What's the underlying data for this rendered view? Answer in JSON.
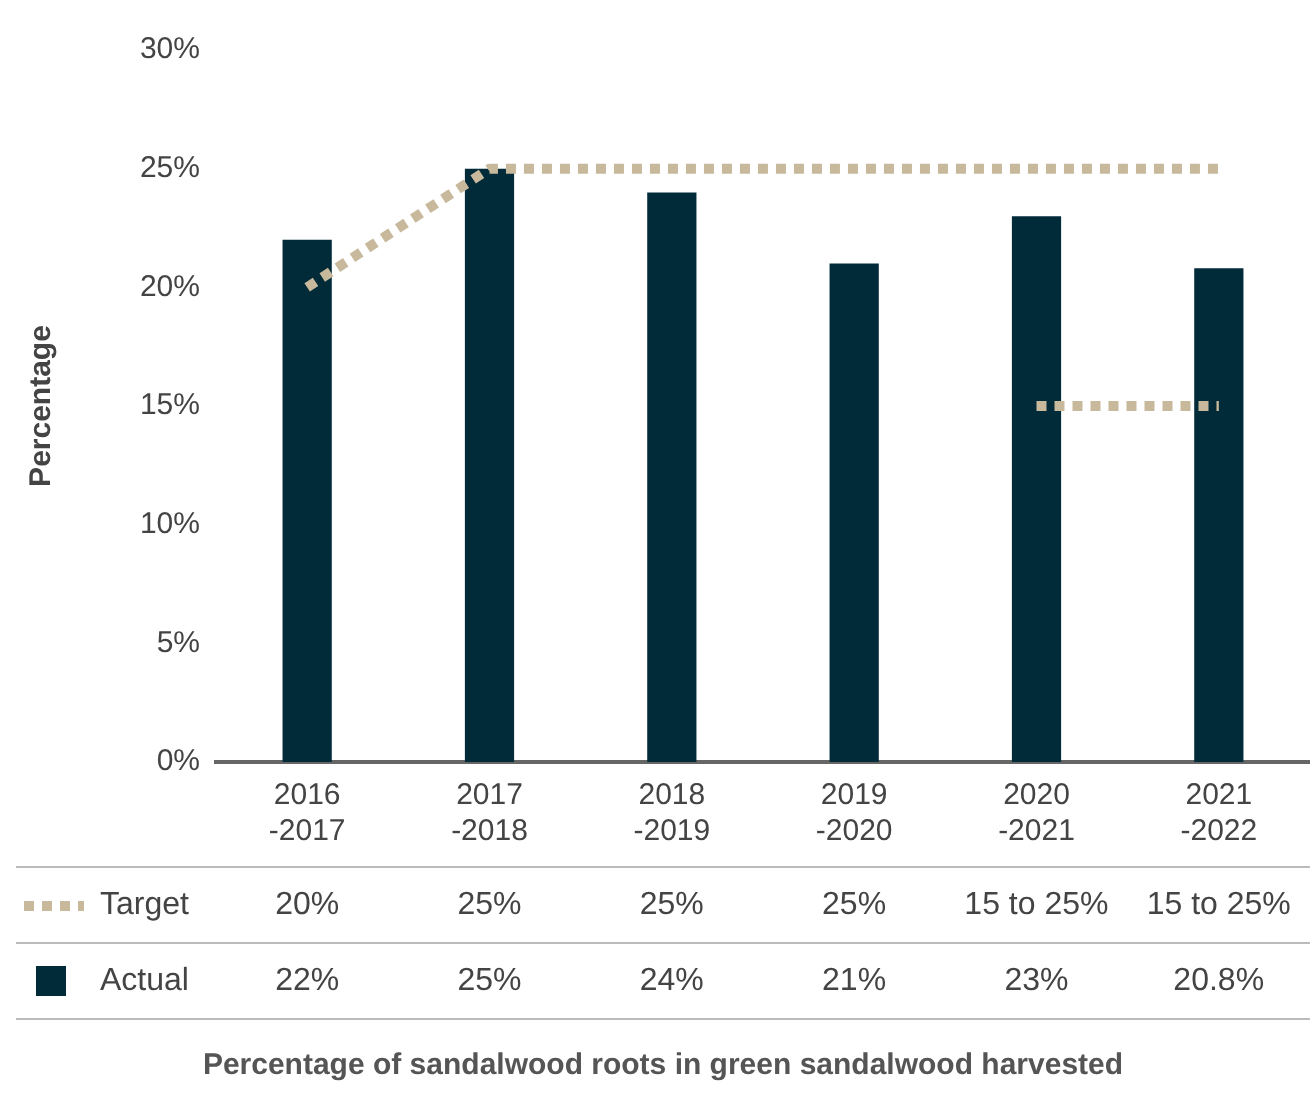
{
  "chart_data": {
    "type": "bar",
    "title": "Percentage of sandalwood roots in green sandalwood harvested",
    "ylabel": "Percentage",
    "categories": [
      "2016-2017",
      "2017-2018",
      "2018-2019",
      "2019-2020",
      "2020-2021",
      "2021-2022"
    ],
    "series": [
      {
        "name": "Target",
        "type": "line",
        "color": "#c8b99c",
        "values": [
          20,
          25,
          25,
          25,
          25,
          25
        ],
        "value_labels": [
          "20%",
          "25%",
          "25%",
          "25%",
          "15 to 25%",
          "15 to 25%"
        ]
      },
      {
        "type": "line",
        "color": "#c8b99c",
        "values": [
          null,
          null,
          null,
          null,
          15,
          15
        ]
      },
      {
        "name": "Actual",
        "color": "#022b3a",
        "values": [
          22,
          25,
          24,
          21,
          23,
          20.8
        ],
        "value_labels": [
          "22%",
          "25%",
          "24%",
          "21%",
          "23%",
          "20.8%"
        ]
      }
    ],
    "ylim": [
      0,
      30
    ],
    "yticks": [
      {
        "value": 0,
        "label": "0%"
      },
      {
        "value": 5,
        "label": "5%"
      },
      {
        "value": 10,
        "label": "10%"
      },
      {
        "value": 15,
        "label": "15%"
      },
      {
        "value": 20,
        "label": "20%"
      },
      {
        "value": 25,
        "label": "25%"
      },
      {
        "value": 30,
        "label": "30%"
      }
    ],
    "grid": false,
    "legend": "bottom",
    "line_style": "dashed"
  }
}
